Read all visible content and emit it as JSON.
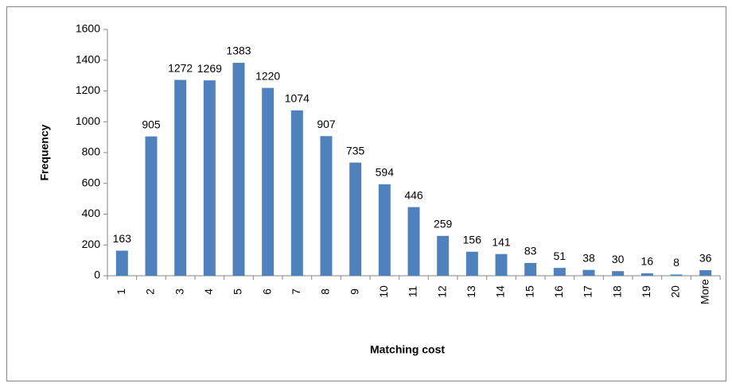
{
  "chart_data": {
    "type": "bar",
    "x_label": "Matching cost",
    "y_label": "Frequency",
    "categories": [
      "1",
      "2",
      "3",
      "4",
      "5",
      "6",
      "7",
      "8",
      "9",
      "10",
      "11",
      "12",
      "13",
      "14",
      "15",
      "16",
      "17",
      "18",
      "19",
      "20",
      "More"
    ],
    "values": [
      163,
      905,
      1272,
      1269,
      1383,
      1220,
      1074,
      907,
      735,
      594,
      446,
      259,
      156,
      141,
      83,
      51,
      38,
      30,
      16,
      8,
      36
    ],
    "color": "#4f81bd",
    "ylim": [
      0,
      1600
    ],
    "yticks": [
      0,
      200,
      400,
      600,
      800,
      1000,
      1200,
      1400,
      1600
    ],
    "grid": false
  }
}
